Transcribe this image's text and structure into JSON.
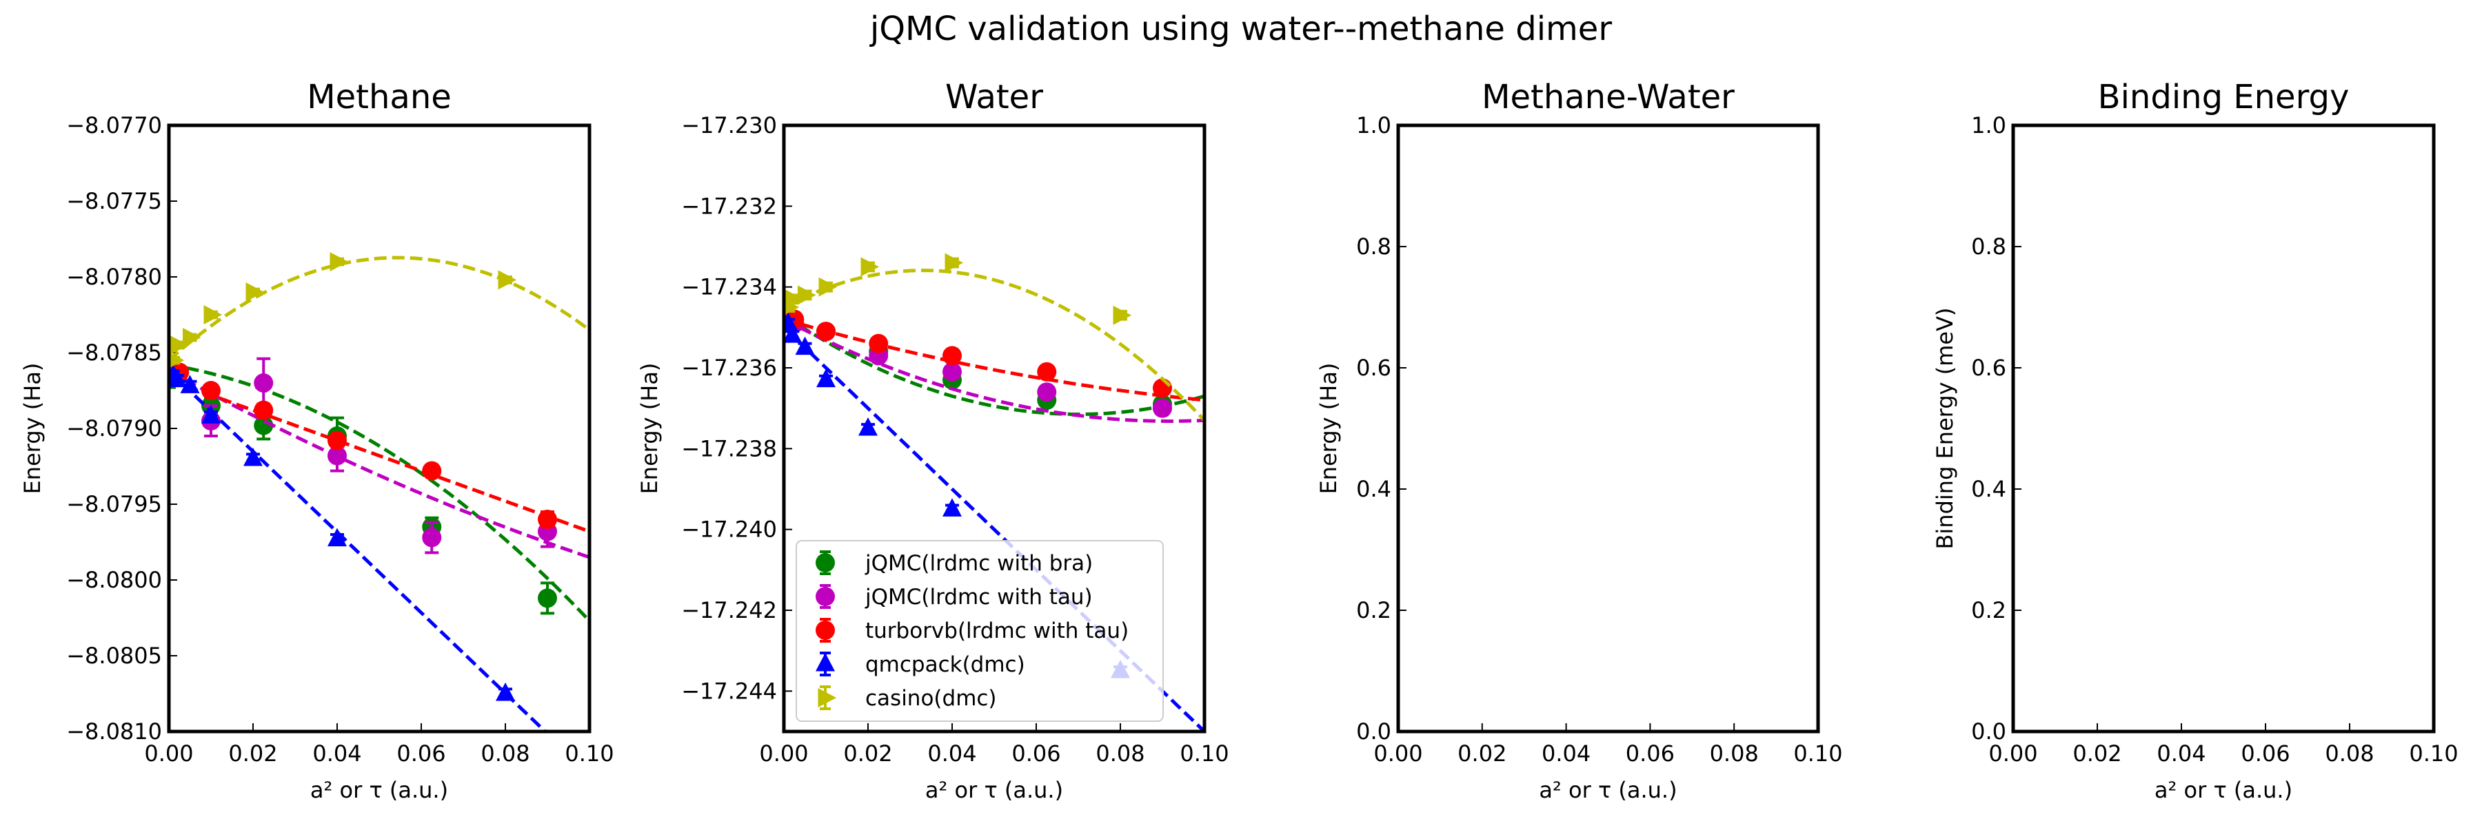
{
  "suptitle": "jQMC validation using water--methane dimer",
  "colors": {
    "jqmc_bra": "#008000",
    "jqmc_tau": "#bf00bf",
    "turbo": "#ff0000",
    "qmcpack": "#0000ff",
    "casino": "#bfbf00"
  },
  "legend": {
    "panel": 1,
    "placement": "lower-left",
    "entries": [
      {
        "label": "jQMC(lrdmc with bra)",
        "color": "#008000",
        "marker": "circle"
      },
      {
        "label": "jQMC(lrdmc with tau)",
        "color": "#bf00bf",
        "marker": "circle"
      },
      {
        "label": "turborvb(lrdmc with tau)",
        "color": "#ff0000",
        "marker": "circle"
      },
      {
        "label": "qmcpack(dmc)",
        "color": "#0000ff",
        "marker": "triangle-up"
      },
      {
        "label": "casino(dmc)",
        "color": "#bfbf00",
        "marker": "triangle-right"
      }
    ]
  },
  "chart_data": [
    {
      "type": "scatter",
      "title": "Methane",
      "xlabel": "a² or τ (a.u.)",
      "ylabel": "Energy (Ha)",
      "xlim": [
        0.0,
        0.1
      ],
      "ylim": [
        -8.081,
        -8.077
      ],
      "xticks": [
        "0.00",
        "0.02",
        "0.04",
        "0.06",
        "0.08",
        "0.10"
      ],
      "yticks": [
        "−8.0770",
        "−8.0775",
        "−8.0780",
        "−8.0785",
        "−8.0790",
        "−8.0795",
        "−8.0800",
        "−8.0805",
        "−8.0810"
      ],
      "yticks_val": [
        -8.077,
        -8.0775,
        -8.078,
        -8.0785,
        -8.079,
        -8.0795,
        -8.08,
        -8.0805,
        -8.081
      ],
      "series": [
        {
          "name": "jQMC(lrdmc with bra)",
          "color": "#008000",
          "marker": "circle",
          "x": [
            0.0,
            0.01,
            0.0225,
            0.04,
            0.0625,
            0.09
          ],
          "y": [
            -8.07865,
            -8.07885,
            -8.07898,
            -8.07905,
            -8.07965,
            -8.08012
          ],
          "err": [
            8e-05,
            5e-05,
            9e-05,
            0.00012,
            6e-05,
            0.0001
          ],
          "fit": [
            -8.07858,
            -0.0045,
            -0.124
          ]
        },
        {
          "name": "jQMC(lrdmc with tau)",
          "color": "#bf00bf",
          "marker": "circle",
          "x": [
            0.0,
            0.01,
            0.0225,
            0.04,
            0.0625,
            0.09
          ],
          "y": [
            -8.07865,
            -8.07895,
            -8.0787,
            -8.07918,
            -8.07972,
            -8.07968
          ],
          "err": [
            6e-05,
            0.0001,
            0.00016,
            0.0001,
            0.0001,
            0.0001
          ],
          "fit": [
            -8.07862,
            -0.0153,
            0.03
          ]
        },
        {
          "name": "turborvb(lrdmc with tau)",
          "color": "#ff0000",
          "marker": "circle",
          "x": [
            0.0025,
            0.01,
            0.0225,
            0.04,
            0.0625,
            0.09
          ],
          "y": [
            -8.07863,
            -8.07875,
            -8.07888,
            -8.07908,
            -8.07928,
            -8.0796
          ],
          "err": [
            3e-05,
            2e-05,
            4e-05,
            4e-05,
            3e-05,
            5e-05
          ],
          "fit": [
            -8.07868,
            -0.01,
            0.0
          ]
        },
        {
          "name": "qmcpack(dmc)",
          "color": "#0000ff",
          "marker": "triangle-up",
          "x": [
            0.001,
            0.002,
            0.005,
            0.01,
            0.02,
            0.04,
            0.08
          ],
          "y": [
            -8.07865,
            -8.07868,
            -8.07872,
            -8.07892,
            -8.0792,
            -8.07973,
            -8.08075
          ],
          "err": [
            3e-05,
            3e-05,
            3e-05,
            3e-05,
            3e-05,
            3e-05,
            3e-05
          ],
          "fit": [
            -8.07862,
            -0.0266,
            0.0
          ]
        },
        {
          "name": "casino(dmc)",
          "color": "#bfbf00",
          "marker": "triangle-right",
          "x": [
            0.001,
            0.002,
            0.005,
            0.01,
            0.02,
            0.04,
            0.08
          ],
          "y": [
            -8.07855,
            -8.07845,
            -8.0784,
            -8.07825,
            -8.0781,
            -8.0779,
            -8.07802
          ],
          "err": [
            2e-05,
            2e-05,
            2e-05,
            2e-05,
            2e-05,
            2e-05,
            2e-05
          ],
          "fit": [
            -8.07855,
            0.0249,
            -0.229
          ]
        }
      ]
    },
    {
      "type": "scatter",
      "title": "Water",
      "xlabel": "a² or τ (a.u.)",
      "ylabel": "Energy (Ha)",
      "xlim": [
        0.0,
        0.1
      ],
      "ylim": [
        -17.245,
        -17.23
      ],
      "xticks": [
        "0.00",
        "0.02",
        "0.04",
        "0.06",
        "0.08",
        "0.10"
      ],
      "yticks": [
        "−17.230",
        "−17.232",
        "−17.234",
        "−17.236",
        "−17.238",
        "−17.240",
        "−17.242",
        "−17.244"
      ],
      "yticks_val": [
        -17.23,
        -17.232,
        -17.234,
        -17.236,
        -17.238,
        -17.24,
        -17.242,
        -17.244
      ],
      "series": [
        {
          "name": "jQMC(lrdmc with bra)",
          "color": "#008000",
          "marker": "circle",
          "x": [
            0.0025,
            0.01,
            0.0225,
            0.04,
            0.0625,
            0.09
          ],
          "y": [
            -17.2349,
            -17.2351,
            -17.2356,
            -17.2363,
            -17.2368,
            -17.2369
          ],
          "err": [
            0.0001,
            0.0001,
            0.0001,
            0.0001,
            0.0001,
            0.0001
          ],
          "fit": [
            -17.2347,
            -0.07,
            0.5
          ]
        },
        {
          "name": "jQMC(lrdmc with tau)",
          "color": "#bf00bf",
          "marker": "circle",
          "x": [
            0.0025,
            0.01,
            0.0225,
            0.04,
            0.0625,
            0.09
          ],
          "y": [
            -17.2349,
            -17.2351,
            -17.2357,
            -17.2361,
            -17.2366,
            -17.237
          ],
          "err": [
            0.0001,
            0.0001,
            0.0001,
            0.0001,
            0.0001,
            0.0001
          ],
          "fit": [
            -17.2348,
            -0.055,
            0.3
          ]
        },
        {
          "name": "turborvb(lrdmc with tau)",
          "color": "#ff0000",
          "marker": "circle",
          "x": [
            0.0025,
            0.01,
            0.0225,
            0.04,
            0.0625,
            0.09
          ],
          "y": [
            -17.2348,
            -17.2351,
            -17.2354,
            -17.2357,
            -17.2361,
            -17.2365
          ],
          "err": [
            0.0001,
            0.0001,
            0.0001,
            0.0001,
            0.0001,
            0.0001
          ],
          "fit": [
            -17.2348,
            -0.03,
            0.1
          ]
        },
        {
          "name": "qmcpack(dmc)",
          "color": "#0000ff",
          "marker": "triangle-up",
          "x": [
            0.001,
            0.002,
            0.005,
            0.01,
            0.02,
            0.04,
            0.08
          ],
          "y": [
            -17.2349,
            -17.2352,
            -17.2355,
            -17.2363,
            -17.2375,
            -17.2395,
            -17.2435
          ],
          "err": [
            0.0001,
            0.0001,
            0.0001,
            0.0001,
            0.0001,
            0.0001,
            0.0001
          ],
          "fit": [
            -17.235,
            -0.1,
            0.0
          ]
        },
        {
          "name": "casino(dmc)",
          "color": "#bfbf00",
          "marker": "triangle-right",
          "x": [
            0.001,
            0.002,
            0.005,
            0.01,
            0.02,
            0.04,
            0.08
          ],
          "y": [
            -17.2345,
            -17.2343,
            -17.2342,
            -17.234,
            -17.2335,
            -17.2334,
            -17.2347
          ],
          "err": [
            0.0001,
            0.0001,
            0.0001,
            0.0001,
            0.0001,
            0.0001,
            0.0001
          ],
          "fit": [
            -17.2345,
            0.055,
            -0.83
          ]
        }
      ]
    },
    {
      "type": "scatter",
      "title": "Methane-Water",
      "xlabel": "a² or τ (a.u.)",
      "ylabel": "Energy (Ha)",
      "xlim": [
        0.0,
        0.1
      ],
      "ylim": [
        0.0,
        1.0
      ],
      "xticks": [
        "0.00",
        "0.02",
        "0.04",
        "0.06",
        "0.08",
        "0.10"
      ],
      "yticks": [
        "0.0",
        "0.2",
        "0.4",
        "0.6",
        "0.8",
        "1.0"
      ],
      "yticks_val": [
        0.0,
        0.2,
        0.4,
        0.6,
        0.8,
        1.0
      ],
      "series": []
    },
    {
      "type": "scatter",
      "title": "Binding Energy",
      "xlabel": "a² or τ (a.u.)",
      "ylabel": "Binding Energy (meV)",
      "xlim": [
        0.0,
        0.1
      ],
      "ylim": [
        0.0,
        1.0
      ],
      "xticks": [
        "0.00",
        "0.02",
        "0.04",
        "0.06",
        "0.08",
        "0.10"
      ],
      "yticks": [
        "0.0",
        "0.2",
        "0.4",
        "0.6",
        "0.8",
        "1.0"
      ],
      "yticks_val": [
        0.0,
        0.2,
        0.4,
        0.6,
        0.8,
        1.0
      ],
      "series": []
    }
  ]
}
